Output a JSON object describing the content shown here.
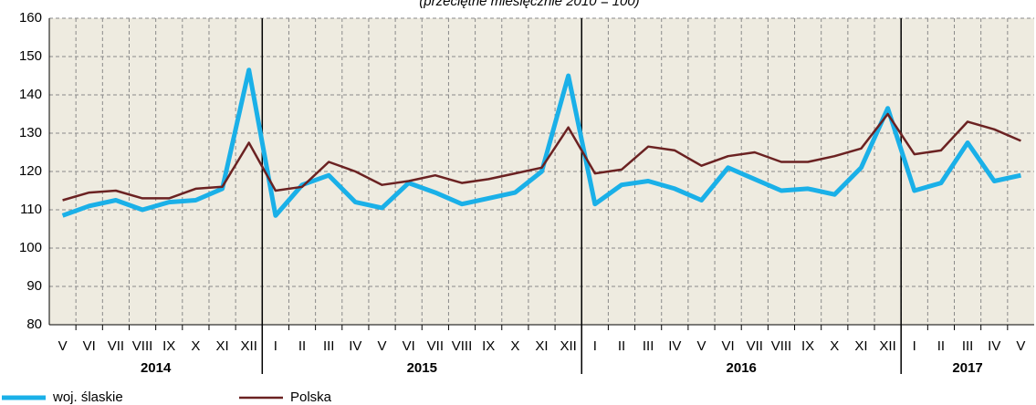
{
  "chart_data": {
    "type": "line",
    "subtitle": "(przeciętne miesięcznie 2010 = 100)",
    "categories": [
      "V",
      "VI",
      "VII",
      "VIII",
      "IX",
      "X",
      "XI",
      "XII",
      "I",
      "II",
      "III",
      "IV",
      "V",
      "VI",
      "VII",
      "VIII",
      "IX",
      "X",
      "XI",
      "XII",
      "I",
      "II",
      "III",
      "IV",
      "V",
      "VI",
      "VII",
      "VIII",
      "IX",
      "X",
      "XI",
      "XII",
      "I",
      "II",
      "III",
      "IV",
      "V"
    ],
    "years": [
      "2014",
      "2015",
      "2016",
      "2017"
    ],
    "series": [
      {
        "name": "woj. ślaskie",
        "color": "#1ab0e8",
        "values": [
          108.5,
          111,
          112.5,
          110,
          112,
          112.5,
          115.5,
          146.5,
          108.5,
          116.5,
          119,
          112,
          110.5,
          117,
          114.5,
          111.5,
          113,
          114.5,
          120,
          145,
          111.5,
          116.5,
          117.5,
          115.5,
          112.5,
          121,
          118,
          115,
          115.5,
          114,
          121,
          136.5,
          115,
          117,
          127.5,
          117.5,
          119
        ]
      },
      {
        "name": "Polska",
        "color": "#6b2222",
        "values": [
          112.5,
          114.5,
          115,
          113,
          113,
          115.5,
          116,
          127.5,
          115,
          116,
          122.5,
          120,
          116.5,
          117.5,
          119,
          117,
          118,
          119.5,
          121,
          131.5,
          119.5,
          120.5,
          126.5,
          125.5,
          121.5,
          124,
          125,
          122.5,
          122.5,
          124,
          126,
          135,
          124.5,
          125.5,
          133,
          131,
          128
        ]
      }
    ],
    "ylim": [
      80,
      160
    ],
    "yticks": [
      80,
      90,
      100,
      110,
      120,
      130,
      140,
      150,
      160
    ],
    "grid": true,
    "legend": "bottom"
  }
}
